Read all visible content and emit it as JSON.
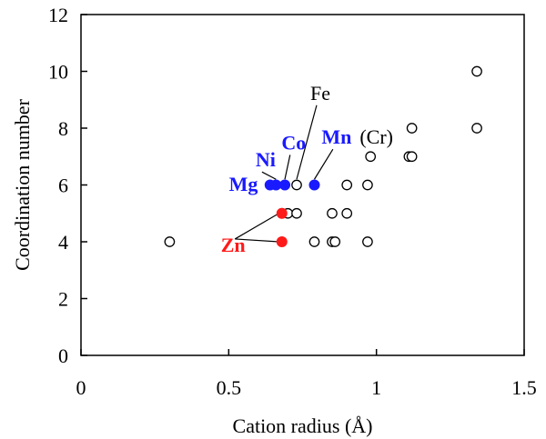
{
  "chart_data": {
    "type": "scatter",
    "xlabel": "Cation radius (Å)",
    "ylabel": "Coordination number",
    "xlim": [
      0,
      1.5
    ],
    "ylim": [
      0,
      12
    ],
    "x_ticks": [
      0,
      0.5,
      1,
      1.5
    ],
    "y_ticks": [
      0,
      2,
      4,
      6,
      8,
      10,
      12
    ],
    "x_tick_labels": [
      "0",
      "0.5",
      "1",
      "1.5"
    ],
    "y_tick_labels": [
      "0",
      "2",
      "4",
      "6",
      "8",
      "10",
      "12"
    ],
    "grid": false,
    "legend": false,
    "colors": {
      "open": "#000000",
      "blue": "#1a1aff",
      "red": "#ff1a1a"
    },
    "series": [
      {
        "style": "open",
        "points": [
          [
            0.3,
            4
          ],
          [
            0.68,
            5
          ],
          [
            0.7,
            5
          ],
          [
            0.73,
            5
          ],
          [
            0.85,
            5
          ],
          [
            0.9,
            5
          ],
          [
            0.79,
            4
          ],
          [
            0.85,
            4
          ],
          [
            0.86,
            4
          ],
          [
            0.97,
            4
          ],
          [
            0.73,
            6
          ],
          [
            0.9,
            6
          ],
          [
            0.97,
            6
          ],
          [
            0.98,
            7
          ],
          [
            1.11,
            7
          ],
          [
            1.12,
            7
          ],
          [
            1.12,
            8
          ],
          [
            1.34,
            8
          ],
          [
            1.34,
            10
          ]
        ]
      },
      {
        "style": "filled",
        "color": "#1a1aff",
        "points": [
          [
            0.64,
            6
          ],
          [
            0.66,
            6
          ],
          [
            0.69,
            6
          ],
          [
            0.79,
            6
          ]
        ]
      },
      {
        "style": "filled",
        "color": "#ff1a1a",
        "points": [
          [
            0.68,
            5
          ],
          [
            0.68,
            4
          ]
        ]
      }
    ],
    "annotations": [
      {
        "text": "Fe",
        "color": "#000000",
        "bold": false,
        "x": 0.81,
        "y": 9.0,
        "target": [
          0.73,
          6.2
        ]
      },
      {
        "text": "Co",
        "color": "#1a1aff",
        "bold": true,
        "x": 0.72,
        "y": 7.25,
        "target": [
          0.69,
          6.2
        ]
      },
      {
        "text": "Ni",
        "color": "#1a1aff",
        "bold": true,
        "x": 0.625,
        "y": 6.65,
        "target": [
          0.66,
          6.2
        ]
      },
      {
        "text": "Mn",
        "color": "#1a1aff",
        "bold": true,
        "x": 0.865,
        "y": 7.45,
        "target": [
          0.79,
          6.2
        ]
      },
      {
        "text": "(Cr)",
        "color": "#000000",
        "bold": false,
        "x": 1.0,
        "y": 7.45,
        "target": null
      },
      {
        "text": "Mg",
        "color": "#1a1aff",
        "bold": true,
        "x": 0.55,
        "y": 5.8,
        "target": null
      },
      {
        "text": "Zn",
        "color": "#ff1a1a",
        "bold": true,
        "x": 0.515,
        "y": 3.65,
        "targets": [
          [
            0.67,
            5
          ],
          [
            0.67,
            4
          ]
        ]
      }
    ]
  }
}
